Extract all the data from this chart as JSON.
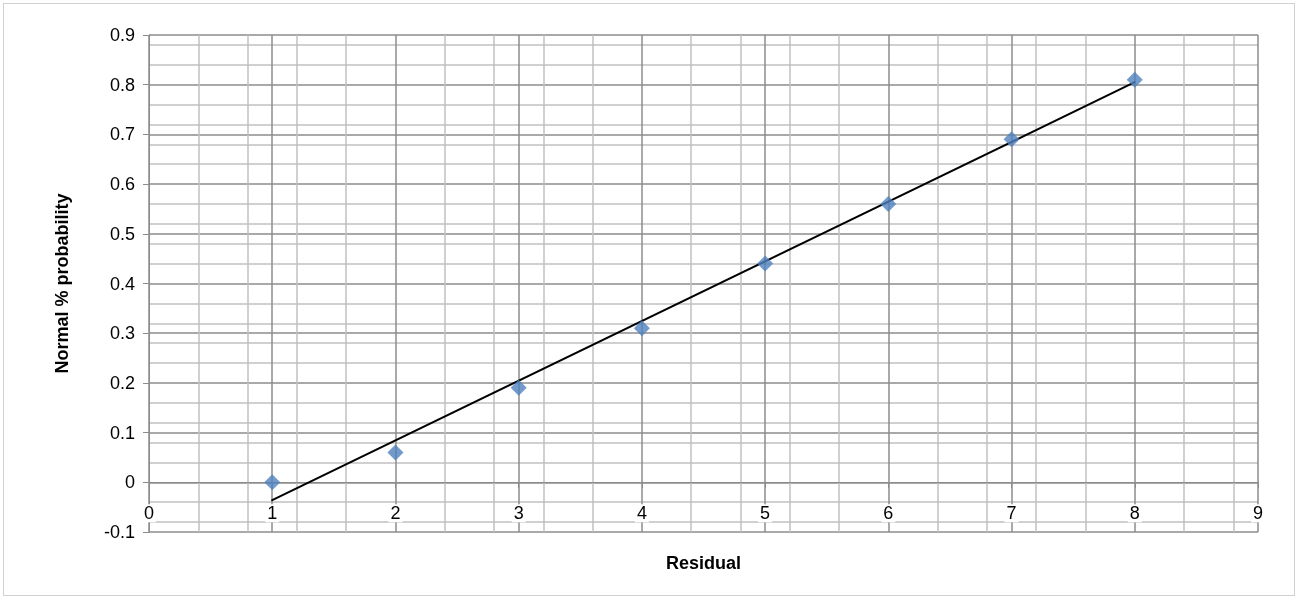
{
  "chart_data": {
    "type": "scatter",
    "xlabel": "Residual",
    "ylabel": "Normal % probability",
    "x": [
      1,
      2,
      3,
      4,
      5,
      6,
      7,
      8
    ],
    "series": [
      {
        "color": "#4f81bd",
        "marker": "diamond",
        "values": [
          0,
          0.06,
          0.19,
          0.31,
          0.44,
          0.56,
          0.69,
          0.81
        ]
      },
      {
        "type": "line",
        "color": "#000000",
        "marker": "none",
        "x": [
          1,
          8
        ],
        "values": [
          -0.036,
          0.805
        ]
      }
    ],
    "xlim": [
      0,
      9
    ],
    "xticks": [
      0,
      1,
      2,
      3,
      4,
      5,
      6,
      7,
      8,
      9
    ],
    "ylim": [
      -0.1,
      0.9
    ],
    "yticks": [
      -0.1,
      0,
      0.1,
      0.2,
      0.3,
      0.4,
      0.5,
      0.6,
      0.7,
      0.8,
      0.9
    ],
    "grid": true
  }
}
